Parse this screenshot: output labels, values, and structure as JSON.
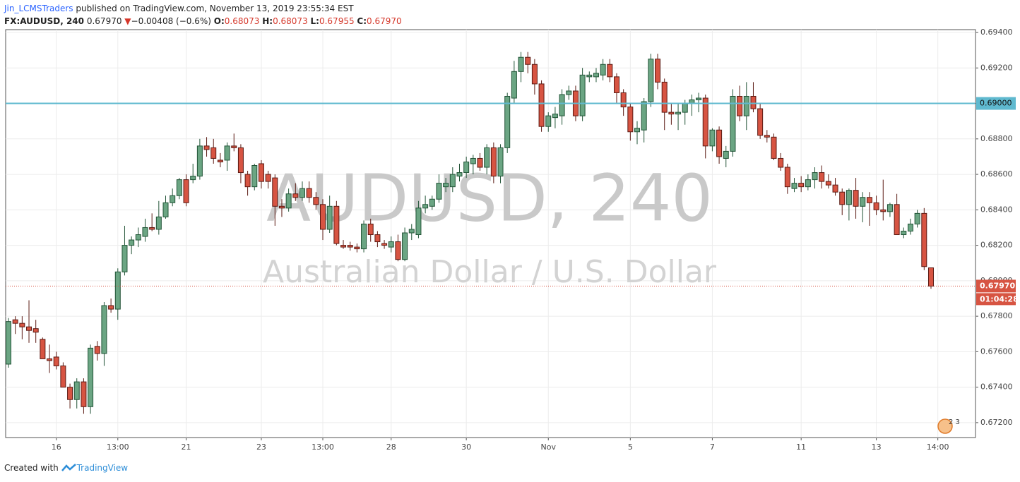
{
  "header": {
    "author": "Jin_LCMSTraders",
    "published": "published on TradingView.com, November 13, 2019 23:55:34 EST",
    "symbol": "FX:AUDUSD, 240",
    "last": "0.67970",
    "change": "−0.00408 (−0.6%)",
    "o_label": "O:",
    "o": "0.68073",
    "h_label": "H:",
    "h": "0.68073",
    "l_label": "L:",
    "l": "0.67955",
    "c_label": "C:",
    "c": "0.67970"
  },
  "footer": {
    "created": "Created with",
    "brand": "TradingView"
  },
  "chart_data": {
    "type": "candlestick",
    "watermark_title": "AUDUSD, 240",
    "watermark_subtitle": "Australian Dollar / U.S. Dollar",
    "badge": "2 3",
    "up_color": "#6ba583",
    "down_color": "#d75442",
    "up_border": "#225437",
    "down_border": "#5b1a13",
    "categories": [
      null,
      null,
      null,
      null,
      null,
      null,
      null,
      "16",
      null,
      null,
      null,
      null,
      null,
      null,
      null,
      null,
      "13:00",
      null,
      null,
      null,
      null,
      null,
      null,
      null,
      null,
      null,
      "21",
      null,
      null,
      null,
      null,
      null,
      null,
      null,
      null,
      null,
      null,
      "23",
      null,
      null,
      null,
      null,
      null,
      null,
      null,
      null,
      "13:00",
      null,
      null,
      null,
      null,
      null,
      null,
      null,
      null,
      null,
      "28",
      null,
      null,
      null,
      null,
      null,
      null,
      null,
      null,
      null,
      null,
      "30",
      null,
      null,
      null,
      null,
      null,
      null,
      null,
      null,
      null,
      null,
      null,
      "Nov",
      null,
      null,
      null,
      null,
      null,
      null,
      null,
      null,
      null,
      null,
      null,
      "5",
      null,
      null,
      null,
      null,
      null,
      null,
      null,
      null,
      null,
      null,
      null,
      "7",
      null,
      null,
      null,
      null,
      null,
      null,
      null,
      null,
      null,
      null,
      null,
      null,
      "11",
      null,
      null,
      null,
      null,
      null,
      null,
      null,
      null,
      null,
      null,
      "13",
      null,
      null,
      null,
      null,
      null,
      null,
      null,
      null,
      "14:00"
    ],
    "open": [
      0.6753,
      0.6778,
      0.6776,
      0.6774,
      0.6773,
      0.6767,
      0.6756,
      0.6757,
      0.6752,
      0.674,
      0.6733,
      0.6743,
      0.6729,
      0.6763,
      0.6759,
      0.6786,
      0.6784,
      0.6805,
      0.682,
      0.6823,
      0.6825,
      0.683,
      0.6829,
      0.6836,
      0.6844,
      0.6848,
      0.6857,
      0.6857,
      0.6859,
      0.6876,
      0.6875,
      0.6868,
      0.6868,
      0.6876,
      0.6875,
      0.686,
      0.6853,
      0.6866,
      0.686,
      0.6858,
      0.6842,
      0.6841,
      0.6849,
      0.6847,
      0.6852,
      0.6847,
      0.6843,
      0.6829,
      0.6842,
      0.682,
      0.682,
      0.6819,
      0.6818,
      0.6832,
      0.6826,
      0.6821,
      0.6819,
      0.6822,
      0.6812,
      0.6827,
      0.6826,
      0.6841,
      0.6842,
      0.6846,
      0.6853,
      0.6853,
      0.6859,
      0.6861,
      0.6866,
      0.6869,
      0.6864,
      0.6875,
      0.6859,
      0.6875,
      0.6903,
      0.6918,
      0.6926,
      0.6922,
      0.6911,
      0.6887,
      0.6892,
      0.6893,
      0.6905,
      0.6907,
      0.6893,
      0.6915,
      0.6915,
      0.6916,
      0.6922,
      0.6915,
      0.6906,
      0.6898,
      0.6884,
      0.6885,
      0.6901,
      0.6925,
      0.6912,
      0.6895,
      0.6894,
      0.6895,
      0.69,
      0.6902,
      0.6903,
      0.6876,
      0.6885,
      0.6869,
      0.6873,
      0.6904,
      0.6893,
      0.6904,
      0.6897,
      0.6882,
      0.6881,
      0.6869,
      0.6864,
      0.6852,
      0.6855,
      0.6853,
      0.6857,
      0.6861,
      0.6856,
      0.6854,
      0.685,
      0.6843,
      0.6851,
      0.6842,
      0.6847,
      0.6844,
      0.684,
      0.6839,
      0.6843,
      0.6826,
      0.6828,
      0.6832,
      0.6838,
      0.68073,
      null
    ],
    "high": [
      0.6779,
      0.678,
      0.678,
      0.6789,
      0.6778,
      0.6768,
      0.6764,
      0.676,
      0.6754,
      0.6742,
      0.6745,
      0.6745,
      0.6764,
      0.6766,
      0.6788,
      0.679,
      0.6807,
      0.6831,
      0.6825,
      0.683,
      0.6835,
      0.6838,
      0.6845,
      0.6848,
      0.6852,
      0.6858,
      0.686,
      0.6866,
      0.688,
      0.6881,
      0.688,
      0.6872,
      0.6878,
      0.6883,
      0.6877,
      0.6862,
      0.6866,
      0.6868,
      0.6862,
      0.686,
      0.6846,
      0.6852,
      0.6855,
      0.6856,
      0.6856,
      0.685,
      0.6846,
      0.6848,
      0.6845,
      0.6823,
      0.6822,
      0.6821,
      0.6834,
      0.6835,
      0.6828,
      0.6823,
      0.6825,
      0.6826,
      0.683,
      0.6832,
      0.6845,
      0.6848,
      0.6848,
      0.686,
      0.6858,
      0.6864,
      0.6866,
      0.687,
      0.6871,
      0.6872,
      0.6877,
      0.6878,
      0.6877,
      0.6906,
      0.6924,
      0.6929,
      0.6929,
      0.6925,
      0.6913,
      0.6895,
      0.6898,
      0.6908,
      0.691,
      0.691,
      0.692,
      0.6918,
      0.692,
      0.6925,
      0.6925,
      0.6917,
      0.6908,
      0.69,
      0.689,
      0.6903,
      0.6928,
      0.6928,
      0.6914,
      0.69,
      0.69,
      0.6902,
      0.6905,
      0.6906,
      0.6905,
      0.6886,
      0.6887,
      0.6876,
      0.6908,
      0.691,
      0.6912,
      0.6912,
      0.69,
      0.6885,
      0.6883,
      0.6872,
      0.6866,
      0.6858,
      0.6859,
      0.686,
      0.6864,
      0.6865,
      0.686,
      0.6858,
      0.6852,
      0.6852,
      0.6858,
      0.685,
      0.685,
      0.6848,
      0.6857,
      0.6844,
      0.6849,
      0.683,
      0.6835,
      0.684,
      0.6841,
      0.68073,
      null
    ],
    "low": [
      0.6751,
      0.677,
      0.6767,
      0.6765,
      0.6765,
      0.6756,
      0.6748,
      0.675,
      0.674,
      0.6728,
      0.6728,
      0.6725,
      0.6725,
      0.6755,
      0.6752,
      0.6782,
      0.6778,
      0.6803,
      0.6815,
      0.6819,
      0.6822,
      0.6828,
      0.6826,
      0.6835,
      0.6842,
      0.6846,
      0.6842,
      0.6855,
      0.6857,
      0.687,
      0.6866,
      0.6864,
      0.6862,
      0.6873,
      0.6855,
      0.6848,
      0.6851,
      0.6852,
      0.6852,
      0.6831,
      0.6836,
      0.6839,
      0.6845,
      0.6845,
      0.6844,
      0.684,
      0.6823,
      0.6827,
      0.682,
      0.6818,
      0.6817,
      0.6816,
      0.6816,
      0.6822,
      0.6819,
      0.6818,
      0.6816,
      0.6811,
      0.6811,
      0.6823,
      0.6824,
      0.6838,
      0.684,
      0.6844,
      0.685,
      0.685,
      0.6856,
      0.6858,
      0.686,
      0.6862,
      0.686,
      0.6855,
      0.6855,
      0.6872,
      0.69,
      0.6912,
      0.6917,
      0.6905,
      0.6884,
      0.6884,
      0.6886,
      0.6888,
      0.6902,
      0.689,
      0.689,
      0.6912,
      0.6912,
      0.6913,
      0.6912,
      0.69,
      0.6893,
      0.6879,
      0.6877,
      0.6878,
      0.6898,
      0.6908,
      0.6885,
      0.6888,
      0.6885,
      0.6888,
      0.6893,
      0.6895,
      0.6869,
      0.6873,
      0.6866,
      0.6864,
      0.687,
      0.689,
      0.6885,
      0.6895,
      0.688,
      0.6878,
      0.6868,
      0.6862,
      0.6849,
      0.685,
      0.685,
      0.6851,
      0.6852,
      0.6852,
      0.6852,
      0.6848,
      0.6837,
      0.6834,
      0.6835,
      0.6833,
      0.6831,
      0.6837,
      0.6834,
      0.6836,
      0.6826,
      0.6824,
      0.6826,
      0.683,
      0.6806,
      0.67955,
      null
    ],
    "close": [
      0.6777,
      0.6776,
      0.6774,
      0.6772,
      0.6771,
      0.6756,
      0.6755,
      0.6752,
      0.674,
      0.6733,
      0.6743,
      0.6729,
      0.6762,
      0.6759,
      0.6786,
      0.6784,
      0.6805,
      0.682,
      0.6823,
      0.6826,
      0.683,
      0.6829,
      0.6836,
      0.6844,
      0.6848,
      0.6857,
      0.6844,
      0.6859,
      0.6876,
      0.6874,
      0.6869,
      0.6867,
      0.6876,
      0.6875,
      0.6861,
      0.6853,
      0.6865,
      0.6856,
      0.6856,
      0.6842,
      0.6841,
      0.6849,
      0.6847,
      0.6852,
      0.6847,
      0.6843,
      0.6829,
      0.6842,
      0.6821,
      0.6819,
      0.6819,
      0.6818,
      0.6832,
      0.6826,
      0.6822,
      0.682,
      0.6822,
      0.6812,
      0.6827,
      0.6829,
      0.6841,
      0.6843,
      0.6846,
      0.6855,
      0.6855,
      0.686,
      0.6861,
      0.6867,
      0.6869,
      0.6864,
      0.6875,
      0.6859,
      0.6875,
      0.6904,
      0.6918,
      0.6926,
      0.6922,
      0.6911,
      0.6887,
      0.6893,
      0.6894,
      0.6905,
      0.6907,
      0.6893,
      0.6916,
      0.6916,
      0.6917,
      0.6922,
      0.6915,
      0.6906,
      0.6898,
      0.6884,
      0.6886,
      0.6901,
      0.6925,
      0.6912,
      0.6895,
      0.6894,
      0.6895,
      0.69,
      0.6902,
      0.6903,
      0.6876,
      0.6885,
      0.687,
      0.6873,
      0.6904,
      0.6893,
      0.6904,
      0.6897,
      0.6882,
      0.6881,
      0.6869,
      0.6864,
      0.6853,
      0.6855,
      0.6853,
      0.6857,
      0.6861,
      0.6856,
      0.6854,
      0.685,
      0.6843,
      0.6851,
      0.6842,
      0.6847,
      0.6844,
      0.684,
      0.6839,
      0.6843,
      0.6826,
      0.6828,
      0.6832,
      0.6838,
      0.6808,
      0.6797,
      null
    ],
    "ylim": [
      0.67116,
      0.69416
    ],
    "yticks": [
      {
        "value": 0.672,
        "label": "0.67200"
      },
      {
        "value": 0.674,
        "label": "0.67400"
      },
      {
        "value": 0.676,
        "label": "0.67600"
      },
      {
        "value": 0.678,
        "label": "0.67800"
      },
      {
        "value": 0.68,
        "label": "0.68000"
      },
      {
        "value": 0.682,
        "label": "0.68200"
      },
      {
        "value": 0.684,
        "label": "0.68400"
      },
      {
        "value": 0.686,
        "label": "0.68600"
      },
      {
        "value": 0.688,
        "label": "0.68800"
      },
      {
        "value": 0.69,
        "label": "0.69000"
      },
      {
        "value": 0.692,
        "label": "0.69200"
      },
      {
        "value": 0.694,
        "label": "0.69400"
      }
    ],
    "grid": true,
    "hline": {
      "value": 0.69,
      "label": "0.69000",
      "color": "#5fb9cf"
    },
    "last_price": {
      "value": 0.6797,
      "label": "0.67970",
      "countdown": "01:04:28",
      "color": "#d75442"
    }
  }
}
